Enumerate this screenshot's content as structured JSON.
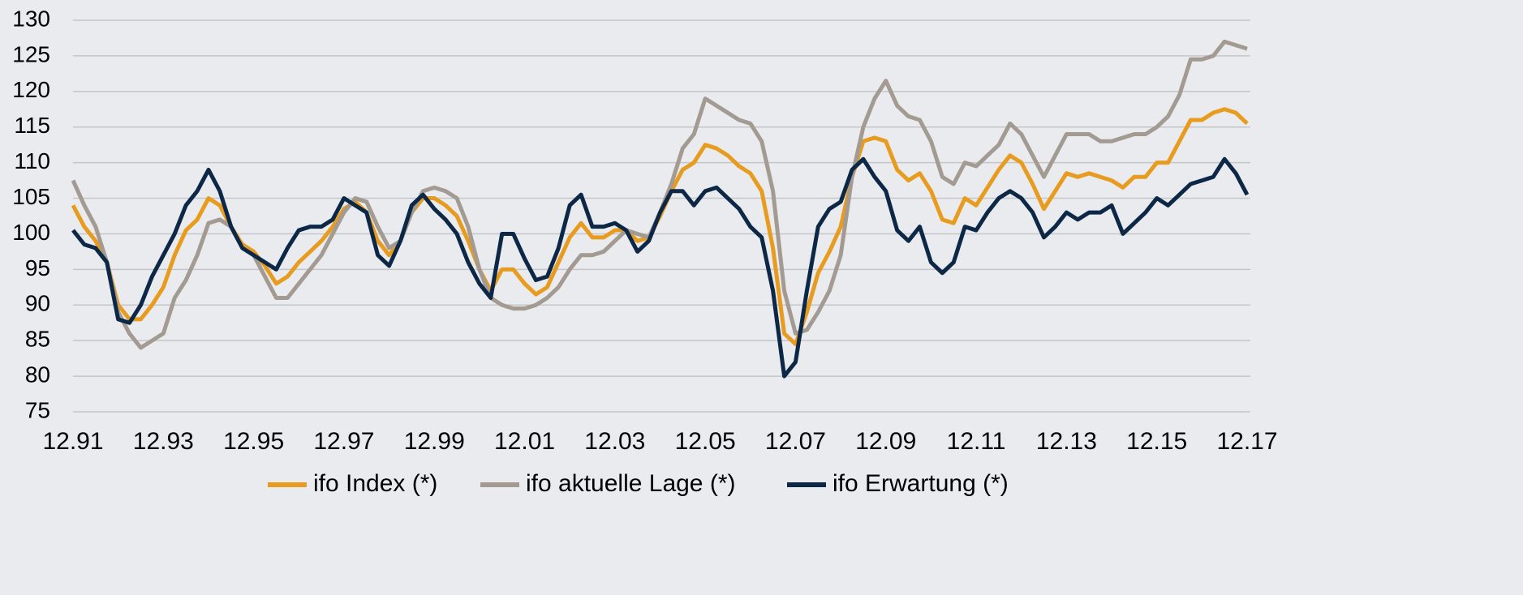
{
  "chart_data": {
    "type": "line",
    "categories": [
      "12.91",
      null,
      null,
      null,
      null,
      null,
      null,
      null,
      "12.93",
      null,
      null,
      null,
      null,
      null,
      null,
      null,
      "12.95",
      null,
      null,
      null,
      null,
      null,
      null,
      null,
      "12.97",
      null,
      null,
      null,
      null,
      null,
      null,
      null,
      "12.99",
      null,
      null,
      null,
      null,
      null,
      null,
      null,
      "12.01",
      null,
      null,
      null,
      null,
      null,
      null,
      null,
      "12.03",
      null,
      null,
      null,
      null,
      null,
      null,
      null,
      "12.05",
      null,
      null,
      null,
      null,
      null,
      null,
      null,
      "12.07",
      null,
      null,
      null,
      null,
      null,
      null,
      null,
      "12.09",
      null,
      null,
      null,
      null,
      null,
      null,
      null,
      "12.11",
      null,
      null,
      null,
      null,
      null,
      null,
      null,
      "12.13",
      null,
      null,
      null,
      null,
      null,
      null,
      null,
      "12.15",
      null,
      null,
      null,
      null,
      null,
      null,
      null,
      "12.17"
    ],
    "series": [
      {
        "name": "ifo Index (*)",
        "color": "#e89c1f",
        "values": [
          104,
          101,
          99,
          96,
          90,
          88,
          88,
          90,
          92.5,
          97,
          100.5,
          102,
          105,
          104,
          101,
          98.5,
          97.5,
          95.5,
          93,
          94,
          96,
          97.5,
          99,
          101,
          103.5,
          104.5,
          103,
          99,
          97,
          99,
          103,
          105,
          105,
          104,
          102.5,
          99,
          95,
          92,
          95,
          95,
          93,
          91.5,
          92.5,
          96,
          99.5,
          101.5,
          99.5,
          99.5,
          100.5,
          100.5,
          99,
          99.5,
          102.5,
          106,
          109,
          110,
          112.5,
          112,
          111,
          109.5,
          108.5,
          106,
          98,
          86,
          84.5,
          89,
          94.5,
          97.5,
          101,
          108,
          113,
          113.5,
          113,
          109,
          107.5,
          108.5,
          106,
          102,
          101.5,
          105,
          104,
          106.5,
          109,
          111,
          110,
          107,
          103.5,
          106,
          108.5,
          108,
          108.5,
          108,
          107.5,
          106.5,
          108,
          108,
          110,
          110,
          113,
          116,
          116,
          117,
          117.5,
          117,
          115.5
        ]
      },
      {
        "name": "ifo aktuelle Lage (*)",
        "color": "#a39a92",
        "values": [
          107.5,
          104,
          101,
          96,
          89,
          86,
          84,
          85,
          86,
          91,
          93.5,
          97,
          101.5,
          102,
          101,
          98,
          97,
          94,
          91,
          91,
          93,
          95,
          97,
          100,
          103,
          105,
          104.5,
          101,
          98,
          99,
          103,
          106,
          106.5,
          106,
          105,
          101,
          95,
          91,
          90,
          89.5,
          89.5,
          90,
          91,
          92.5,
          95,
          97,
          97,
          97.5,
          99,
          100.5,
          100,
          99.5,
          103,
          107,
          112,
          114,
          119,
          118,
          117,
          116,
          115.5,
          113,
          106,
          92,
          86,
          86.5,
          89,
          92,
          97,
          108,
          115,
          119,
          121.5,
          118,
          116.5,
          116,
          113,
          108,
          107,
          110,
          109.5,
          111,
          112.5,
          115.5,
          114,
          111,
          108,
          111,
          114,
          114,
          114,
          113,
          113,
          113.5,
          114,
          114,
          115,
          116.5,
          119.5,
          124.5,
          124.5,
          125,
          127,
          126.5,
          126
        ]
      },
      {
        "name": "ifo Erwartung (*)",
        "color": "#0d2847",
        "values": [
          100.5,
          98.5,
          98,
          96,
          88,
          87.5,
          90,
          94,
          97,
          100,
          104,
          106,
          109,
          106,
          101,
          98,
          97,
          96,
          95,
          98,
          100.5,
          101,
          101,
          102,
          105,
          104,
          103,
          97,
          95.5,
          99,
          104,
          105.5,
          103.5,
          102,
          100,
          96,
          93,
          91,
          100,
          100,
          96.5,
          93.5,
          94,
          98,
          104,
          105.5,
          101,
          101,
          101.5,
          100.5,
          97.5,
          99,
          103,
          106,
          106,
          104,
          106,
          106.5,
          105,
          103.5,
          101,
          99.5,
          92,
          80,
          82,
          92,
          101,
          103.5,
          104.5,
          109,
          110.5,
          108,
          106,
          100.5,
          99,
          101,
          96,
          94.5,
          96,
          101,
          100.5,
          103,
          105,
          106,
          105,
          103,
          99.5,
          101,
          103,
          102,
          103,
          103,
          104,
          100,
          101.5,
          103,
          105,
          104,
          105.5,
          107,
          107.5,
          108,
          110.5,
          108.5,
          105.5
        ]
      }
    ],
    "ylim": [
      75,
      130
    ],
    "yticks": [
      75,
      80,
      85,
      90,
      95,
      100,
      105,
      110,
      115,
      120,
      125,
      130
    ],
    "grid": true,
    "legend": "bottom"
  }
}
